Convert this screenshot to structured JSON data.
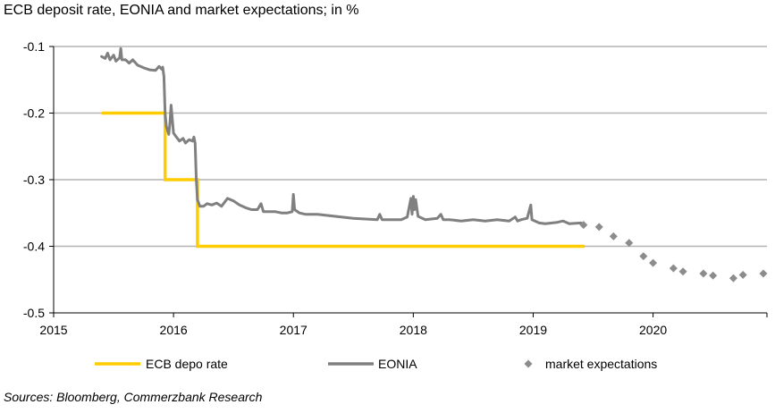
{
  "title": "ECB deposit rate, EONIA and market expectations; in %",
  "source": "Sources: Bloomberg, Commerzbank Research",
  "chart_data": {
    "type": "line",
    "title": "ECB deposit rate, EONIA and market expectations; in %",
    "xlabel": "",
    "ylabel": "",
    "xlim": [
      2015,
      2020.95
    ],
    "ylim": [
      -0.5,
      -0.1
    ],
    "x_ticks": [
      "2015",
      "2016",
      "2017",
      "2018",
      "2019",
      "2020"
    ],
    "y_ticks": [
      "-0.1",
      "-0.2",
      "-0.3",
      "-0.4",
      "-0.5"
    ],
    "grid": "horizontal",
    "colors": {
      "ecb": "#FFCC00",
      "eonia": "#808080",
      "expectations": "#8C8C8C",
      "axis": "#000000",
      "grid": "#B4B4B4"
    },
    "series": [
      {
        "name": "ECB depo rate",
        "style": "step-line",
        "points": [
          [
            2015.4,
            -0.2
          ],
          [
            2015.93,
            -0.2
          ],
          [
            2015.93,
            -0.3
          ],
          [
            2016.2,
            -0.3
          ],
          [
            2016.2,
            -0.4
          ],
          [
            2019.43,
            -0.4
          ]
        ]
      },
      {
        "name": "EONIA",
        "style": "line",
        "points": [
          [
            2015.4,
            -0.115
          ],
          [
            2015.43,
            -0.118
          ],
          [
            2015.45,
            -0.11
          ],
          [
            2015.47,
            -0.12
          ],
          [
            2015.5,
            -0.113
          ],
          [
            2015.52,
            -0.122
          ],
          [
            2015.55,
            -0.117
          ],
          [
            2015.56,
            -0.103
          ],
          [
            2015.57,
            -0.12
          ],
          [
            2015.6,
            -0.12
          ],
          [
            2015.63,
            -0.125
          ],
          [
            2015.66,
            -0.12
          ],
          [
            2015.7,
            -0.128
          ],
          [
            2015.75,
            -0.132
          ],
          [
            2015.8,
            -0.135
          ],
          [
            2015.85,
            -0.136
          ],
          [
            2015.88,
            -0.13
          ],
          [
            2015.9,
            -0.134
          ],
          [
            2015.91,
            -0.131
          ],
          [
            2015.92,
            -0.145
          ],
          [
            2015.93,
            -0.2
          ],
          [
            2015.94,
            -0.22
          ],
          [
            2015.96,
            -0.232
          ],
          [
            2015.97,
            -0.215
          ],
          [
            2015.98,
            -0.188
          ],
          [
            2016.0,
            -0.23
          ],
          [
            2016.02,
            -0.235
          ],
          [
            2016.05,
            -0.242
          ],
          [
            2016.08,
            -0.238
          ],
          [
            2016.1,
            -0.245
          ],
          [
            2016.13,
            -0.24
          ],
          [
            2016.16,
            -0.242
          ],
          [
            2016.17,
            -0.236
          ],
          [
            2016.18,
            -0.245
          ],
          [
            2016.19,
            -0.3
          ],
          [
            2016.2,
            -0.33
          ],
          [
            2016.22,
            -0.34
          ],
          [
            2016.25,
            -0.34
          ],
          [
            2016.28,
            -0.336
          ],
          [
            2016.32,
            -0.338
          ],
          [
            2016.36,
            -0.335
          ],
          [
            2016.4,
            -0.34
          ],
          [
            2016.45,
            -0.328
          ],
          [
            2016.5,
            -0.332
          ],
          [
            2016.55,
            -0.338
          ],
          [
            2016.6,
            -0.342
          ],
          [
            2016.65,
            -0.345
          ],
          [
            2016.7,
            -0.345
          ],
          [
            2016.73,
            -0.336
          ],
          [
            2016.75,
            -0.348
          ],
          [
            2016.8,
            -0.348
          ],
          [
            2016.85,
            -0.348
          ],
          [
            2016.9,
            -0.35
          ],
          [
            2016.95,
            -0.35
          ],
          [
            2016.99,
            -0.348
          ],
          [
            2017.0,
            -0.322
          ],
          [
            2017.01,
            -0.345
          ],
          [
            2017.05,
            -0.35
          ],
          [
            2017.1,
            -0.352
          ],
          [
            2017.2,
            -0.352
          ],
          [
            2017.3,
            -0.354
          ],
          [
            2017.4,
            -0.356
          ],
          [
            2017.5,
            -0.358
          ],
          [
            2017.6,
            -0.359
          ],
          [
            2017.7,
            -0.36
          ],
          [
            2017.72,
            -0.352
          ],
          [
            2017.74,
            -0.36
          ],
          [
            2017.8,
            -0.36
          ],
          [
            2017.9,
            -0.36
          ],
          [
            2017.95,
            -0.356
          ],
          [
            2017.98,
            -0.328
          ],
          [
            2017.99,
            -0.352
          ],
          [
            2018.0,
            -0.325
          ],
          [
            2018.01,
            -0.345
          ],
          [
            2018.02,
            -0.33
          ],
          [
            2018.04,
            -0.355
          ],
          [
            2018.1,
            -0.36
          ],
          [
            2018.2,
            -0.358
          ],
          [
            2018.23,
            -0.352
          ],
          [
            2018.25,
            -0.36
          ],
          [
            2018.3,
            -0.36
          ],
          [
            2018.4,
            -0.362
          ],
          [
            2018.5,
            -0.36
          ],
          [
            2018.6,
            -0.362
          ],
          [
            2018.7,
            -0.36
          ],
          [
            2018.8,
            -0.362
          ],
          [
            2018.85,
            -0.356
          ],
          [
            2018.87,
            -0.362
          ],
          [
            2018.9,
            -0.36
          ],
          [
            2018.95,
            -0.358
          ],
          [
            2018.98,
            -0.338
          ],
          [
            2018.99,
            -0.36
          ],
          [
            2019.05,
            -0.365
          ],
          [
            2019.1,
            -0.366
          ],
          [
            2019.2,
            -0.364
          ],
          [
            2019.25,
            -0.362
          ],
          [
            2019.3,
            -0.366
          ],
          [
            2019.4,
            -0.365
          ],
          [
            2019.43,
            -0.368
          ]
        ]
      },
      {
        "name": "market expectations",
        "style": "markers",
        "points": [
          [
            2019.42,
            -0.368
          ],
          [
            2019.55,
            -0.371
          ],
          [
            2019.67,
            -0.385
          ],
          [
            2019.8,
            -0.395
          ],
          [
            2019.92,
            -0.415
          ],
          [
            2020.0,
            -0.425
          ],
          [
            2020.17,
            -0.433
          ],
          [
            2020.25,
            -0.438
          ],
          [
            2020.42,
            -0.441
          ],
          [
            2020.5,
            -0.444
          ],
          [
            2020.67,
            -0.448
          ],
          [
            2020.75,
            -0.443
          ],
          [
            2020.92,
            -0.441
          ]
        ]
      }
    ]
  },
  "legend": [
    {
      "label": "ECB depo rate",
      "kind": "line",
      "color": "#FFCC00"
    },
    {
      "label": "EONIA",
      "kind": "line",
      "color": "#808080"
    },
    {
      "label": "market expectations",
      "kind": "marker",
      "color": "#8C8C8C"
    }
  ]
}
